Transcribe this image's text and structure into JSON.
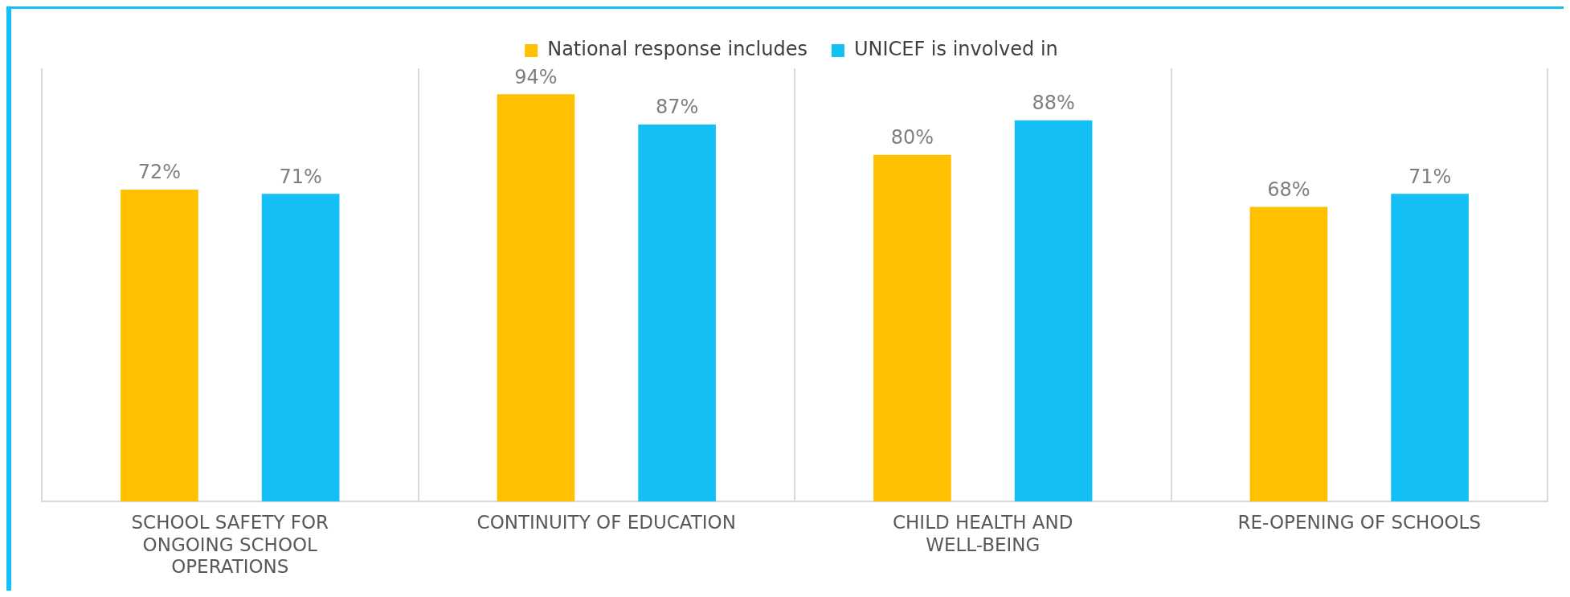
{
  "chart_data": {
    "type": "bar",
    "categories": [
      "SCHOOL SAFETY FOR ONGOING SCHOOL OPERATIONS",
      "CONTINUITY OF EDUCATION",
      "CHILD HEALTH AND WELL-BEING",
      "RE-OPENING OF SCHOOLS"
    ],
    "series": [
      {
        "name": "National response includes",
        "color": "#ffc000",
        "values": [
          72,
          94,
          80,
          68
        ],
        "value_labels": [
          "72%",
          "94%",
          "80%",
          "68%"
        ]
      },
      {
        "name": "UNICEF is involved in",
        "color": "#13bff5",
        "values": [
          71,
          87,
          88,
          71
        ],
        "value_labels": [
          "71%",
          "87%",
          "88%",
          "71%"
        ]
      }
    ],
    "relative": false,
    "grid": "x",
    "legend": "top"
  }
}
